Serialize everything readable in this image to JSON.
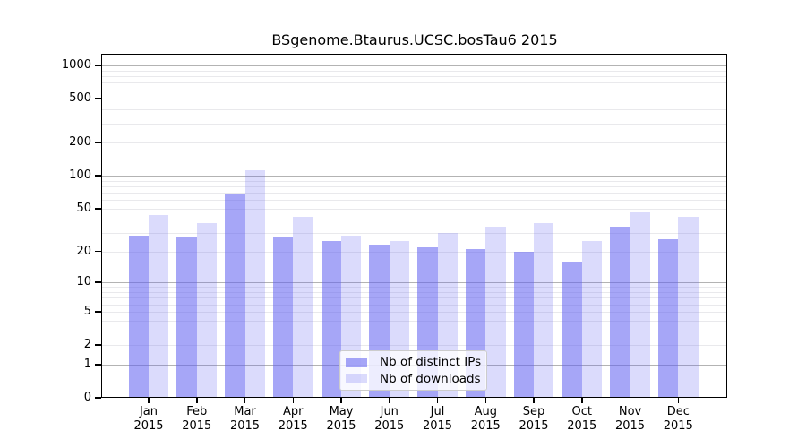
{
  "chart_data": {
    "type": "bar",
    "title": "BSgenome.Btaurus.UCSC.bosTau6 2015",
    "categories": [
      "Jan",
      "Feb",
      "Mar",
      "Apr",
      "May",
      "Jun",
      "Jul",
      "Aug",
      "Sep",
      "Oct",
      "Nov",
      "Dec"
    ],
    "category_year": "2015",
    "series": [
      {
        "name": "Nb of distinct IPs",
        "values": [
          28,
          27,
          69,
          27,
          25,
          23,
          22,
          21,
          20,
          16,
          34,
          26
        ]
      },
      {
        "name": "Nb of downloads",
        "values": [
          44,
          37,
          113,
          42,
          28,
          25,
          30,
          34,
          37,
          25,
          46,
          42
        ]
      }
    ],
    "yscale": "log1p",
    "yticks": [
      0,
      1,
      2,
      5,
      10,
      20,
      50,
      100,
      200,
      500,
      1000
    ],
    "ylim": [
      0,
      1260
    ],
    "grid": {
      "major_values": [
        1,
        10,
        100,
        1000
      ],
      "light_values": [
        2,
        5,
        20,
        50,
        200,
        500
      ],
      "minor_values": [
        3,
        4,
        6,
        7,
        8,
        9,
        30,
        40,
        60,
        70,
        80,
        90,
        300,
        400,
        600,
        700,
        800,
        900
      ]
    },
    "legend": {
      "position": "lower-center",
      "entries": [
        "Nb of distinct IPs",
        "Nb of downloads"
      ]
    }
  },
  "colors": {
    "background": "#ffffff",
    "bar_distinct_ips": "rgba(92,92,240,0.55)",
    "bar_downloads": "rgba(92,92,240,0.22)",
    "grid_major": "#b3b3b3",
    "grid_minor": "#e9e9ec",
    "axis": "#000000",
    "text": "#000000",
    "legend_border": "#cccccc",
    "legend_bg": "rgba(255,255,255,0.8)"
  }
}
